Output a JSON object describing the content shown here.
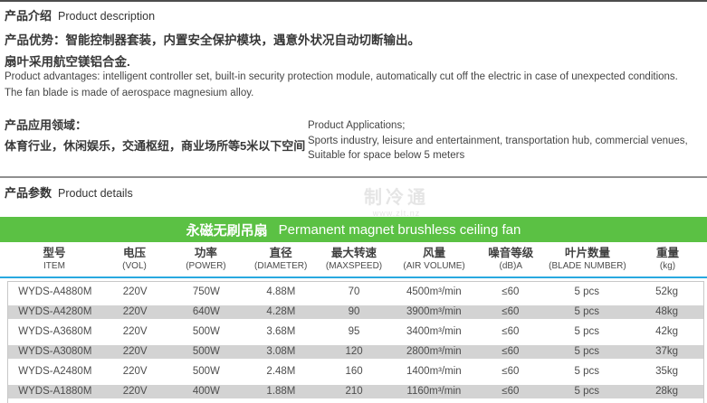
{
  "section1": {
    "title_zh": "产品介绍",
    "title_en": "Product description"
  },
  "advantages": {
    "zh_line1": "产品优势：智能控制器套装，内置安全保护模块，遇意外状况自动切断输出。",
    "zh_line2": "扇叶采用航空镁铝合金.",
    "en_line1": "Product advantages: intelligent controller set, built-in security protection module, automatically cut off the electric in case of unexpected conditions.",
    "en_line2": "The fan blade is made of aerospace magnesium alloy."
  },
  "applications": {
    "zh_title": "产品应用领域：",
    "zh_body": "体育行业，休闲娱乐，交通枢纽，商业场所等5米以下空间",
    "en_line1": "Product Applications;",
    "en_line2": "Sports industry, leisure and entertainment, transportation hub, commercial venues,",
    "en_line3": "Suitable for space below 5 meters"
  },
  "section2": {
    "title_zh": "产品参数",
    "title_en": "Product details"
  },
  "watermark": {
    "line1": "制冷通",
    "line2": "www.zlt.nz"
  },
  "banner": {
    "zh": "永磁无刷吊扇",
    "en": "Permanent magnet brushless ceiling fan"
  },
  "colors": {
    "banner_green": "#5BC144",
    "header_rule_blue": "#29A9E0",
    "row_alt_gray": "#D3D3D3"
  },
  "table": {
    "columns": [
      {
        "zh": "型号",
        "en": "ITEM"
      },
      {
        "zh": "电压",
        "en": "(VOL)"
      },
      {
        "zh": "功率",
        "en": "(POWER)"
      },
      {
        "zh": "直径",
        "en": "(DIAMETER)"
      },
      {
        "zh": "最大转速",
        "en": "(MAXSPEED)"
      },
      {
        "zh": "风量",
        "en": "(AIR VOLUME)"
      },
      {
        "zh": "噪音等级",
        "en": "(dB)A"
      },
      {
        "zh": "叶片数量",
        "en": "(BLADE NUMBER)"
      },
      {
        "zh": "重量",
        "en": "(kg)"
      }
    ],
    "rows": [
      [
        "WYDS-A4880M",
        "220V",
        "750W",
        "4.88M",
        "70",
        "4500m³/min",
        "≤60",
        "5 pcs",
        "52kg"
      ],
      [
        "WYDS-A4280M",
        "220V",
        "640W",
        "4.28M",
        "90",
        "3900m³/min",
        "≤60",
        "5 pcs",
        "48kg"
      ],
      [
        "WYDS-A3680M",
        "220V",
        "500W",
        "3.68M",
        "95",
        "3400m³/min",
        "≤60",
        "5 pcs",
        "42kg"
      ],
      [
        "WYDS-A3080M",
        "220V",
        "500W",
        "3.08M",
        "120",
        "2800m³/min",
        "≤60",
        "5 pcs",
        "37kg"
      ],
      [
        "WYDS-A2480M",
        "220V",
        "500W",
        "2.48M",
        "160",
        "1400m³/min",
        "≤60",
        "5 pcs",
        "35kg"
      ],
      [
        "WYDS-A1880M",
        "220V",
        "400W",
        "1.88M",
        "210",
        "1160m³/min",
        "≤60",
        "5 pcs",
        "28kg"
      ]
    ]
  }
}
